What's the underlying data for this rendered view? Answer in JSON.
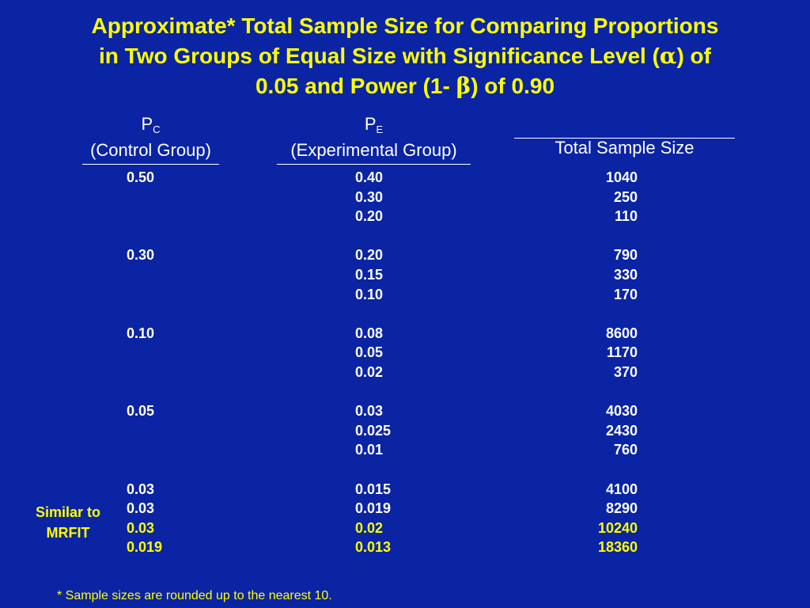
{
  "title": {
    "line1": "Approximate* Total Sample Size for Comparing Proportions",
    "line2_a": "in Two Groups of Equal Size with Significance Level (",
    "alpha_symbol": "α",
    "line2_b": ") of",
    "line3_a": "0.05 and Power (1- ",
    "beta_symbol": "β",
    "line3_b": ") of 0.90"
  },
  "headers": {
    "pc": {
      "letter": "P",
      "subscript": "C",
      "label": "(Control Group)"
    },
    "pe": {
      "letter": "P",
      "subscript": "E",
      "label": "(Experimental Group)"
    },
    "total": {
      "label": "Total Sample Size"
    }
  },
  "rows": [
    {
      "pc": "0.50",
      "pe": "0.40",
      "total": "1040"
    },
    {
      "pc": "",
      "pe": "0.30",
      "total": "250"
    },
    {
      "pc": "",
      "pe": "0.20",
      "total": "110"
    },
    {
      "spacer": true
    },
    {
      "pc": "0.30",
      "pe": "0.20",
      "total": "790"
    },
    {
      "pc": "",
      "pe": "0.15",
      "total": "330"
    },
    {
      "pc": "",
      "pe": "0.10",
      "total": "170"
    },
    {
      "spacer": true
    },
    {
      "pc": "0.10",
      "pe": "0.08",
      "total": "8600"
    },
    {
      "pc": "",
      "pe": "0.05",
      "total": "1170"
    },
    {
      "pc": "",
      "pe": "0.02",
      "total": "370"
    },
    {
      "spacer": true
    },
    {
      "pc": "0.05",
      "pe": "0.03",
      "total": "4030"
    },
    {
      "pc": "",
      "pe": "0.025",
      "total": "2430"
    },
    {
      "pc": "",
      "pe": "0.01",
      "total": "760"
    },
    {
      "spacer": true
    },
    {
      "pc": "0.03",
      "pe": "0.015",
      "total": "4100"
    },
    {
      "pc": "0.03",
      "pe": "0.019",
      "total": "8290"
    },
    {
      "pc": "0.03",
      "pe": "0.02",
      "total": "10240",
      "highlight": true
    },
    {
      "pc": "0.019",
      "pe": "0.013",
      "total": "18360",
      "highlight": true
    }
  ],
  "side_note": {
    "line1": "Similar to",
    "line2": "MRFIT"
  },
  "footnote": "* Sample sizes are rounded up to the nearest 10.",
  "colors": {
    "background": "#0a24a3",
    "title": "#ffff00",
    "text": "#ffffff",
    "highlight": "#ffff00"
  }
}
